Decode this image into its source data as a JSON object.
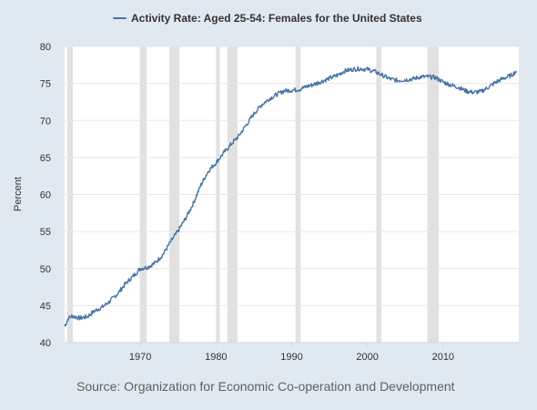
{
  "chart_data": {
    "type": "line",
    "title": "",
    "ylabel": "Percent",
    "xlabel": "",
    "source": "Source: Organization for Economic Co-operation and Development",
    "xlim": [
      1960,
      2020
    ],
    "ylim": [
      40,
      80
    ],
    "x_ticks": [
      1970,
      1980,
      1990,
      2000,
      2010
    ],
    "x_tick_labels": [
      "1970",
      "1980",
      "1990",
      "2000",
      "2010"
    ],
    "y_ticks": [
      40,
      45,
      50,
      55,
      60,
      65,
      70,
      75,
      80
    ],
    "y_tick_labels": [
      "40",
      "45",
      "50",
      "55",
      "60",
      "65",
      "70",
      "75",
      "80"
    ],
    "grid": true,
    "legend_position": "top",
    "recessions": [
      [
        1960.33,
        1961.08
      ],
      [
        1969.92,
        1970.83
      ],
      [
        1973.83,
        1975.17
      ],
      [
        1980.0,
        1980.5
      ],
      [
        1981.5,
        1982.83
      ],
      [
        1990.5,
        1991.17
      ],
      [
        2001.17,
        2001.83
      ],
      [
        2007.92,
        2009.42
      ]
    ],
    "series": [
      {
        "name": "Activity Rate: Aged 25-54: Females for the United States",
        "color": "#4572a7",
        "x": [
          1960,
          1960.5,
          1961,
          1962,
          1963,
          1964,
          1965,
          1966,
          1967,
          1968,
          1969,
          1970,
          1971,
          1972,
          1973,
          1974,
          1975,
          1976,
          1977,
          1978,
          1979,
          1980,
          1981,
          1982,
          1983,
          1984,
          1985,
          1986,
          1987,
          1988,
          1989,
          1990,
          1991,
          1992,
          1993,
          1994,
          1995,
          1996,
          1997,
          1998,
          1999,
          2000,
          2001,
          2002,
          2003,
          2004,
          2005,
          2006,
          2007,
          2008,
          2009,
          2010,
          2011,
          2012,
          2013,
          2014,
          2015,
          2016,
          2017,
          2018,
          2019,
          2019.7
        ],
        "y": [
          42.2,
          43.3,
          43.6,
          43.3,
          43.5,
          44.3,
          44.8,
          45.6,
          46.6,
          47.9,
          48.9,
          50.0,
          50.2,
          50.8,
          51.9,
          53.6,
          55.1,
          56.8,
          58.8,
          61.3,
          63.2,
          64.3,
          65.6,
          66.8,
          67.9,
          69.4,
          70.9,
          72.1,
          72.9,
          73.5,
          74.0,
          74.1,
          74.2,
          74.6,
          74.9,
          75.3,
          75.7,
          76.1,
          76.7,
          76.9,
          77.0,
          76.9,
          76.6,
          76.1,
          75.6,
          75.4,
          75.5,
          75.6,
          75.9,
          75.9,
          75.8,
          75.2,
          74.8,
          74.5,
          74.0,
          73.8,
          73.9,
          74.5,
          75.2,
          75.7,
          76.1,
          76.7
        ]
      }
    ]
  }
}
